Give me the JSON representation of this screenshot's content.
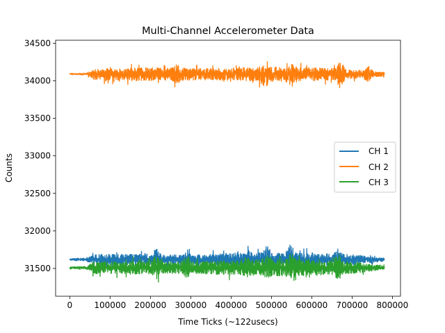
{
  "chart_data": {
    "type": "line",
    "title": "Multi-Channel Accelerometer Data",
    "xlabel": "Time Ticks (~122usecs)",
    "ylabel": "Counts",
    "xlim": [
      -35000,
      820000
    ],
    "ylim": [
      31130,
      34540
    ],
    "xticks": [
      0,
      100000,
      200000,
      300000,
      400000,
      500000,
      600000,
      700000,
      800000
    ],
    "yticks": [
      31500,
      32000,
      32500,
      33000,
      33500,
      34000,
      34500
    ],
    "grid": false,
    "legend_position": "center-right",
    "series": [
      {
        "name": "CH 1",
        "color": "#1f77b4",
        "base": 31620,
        "start_amplitude": 15,
        "peaks": [
          {
            "x": 215000,
            "max": 31900,
            "min": 31440
          },
          {
            "x": 290000,
            "max": 31850,
            "min": 31420
          },
          {
            "x": 440000,
            "max": 31860,
            "min": 31420
          },
          {
            "x": 490000,
            "max": 31930,
            "min": 31400
          },
          {
            "x": 548000,
            "max": 31980,
            "min": 31380
          },
          {
            "x": 665000,
            "max": 31870,
            "min": 31420
          }
        ],
        "envelope": [
          {
            "x": 0,
            "max": 31640,
            "min": 31600
          },
          {
            "x": 40000,
            "max": 31650,
            "min": 31590
          },
          {
            "x": 60000,
            "max": 31730,
            "min": 31500
          },
          {
            "x": 150000,
            "max": 31740,
            "min": 31490
          },
          {
            "x": 300000,
            "max": 31720,
            "min": 31500
          },
          {
            "x": 400000,
            "max": 31760,
            "min": 31480
          },
          {
            "x": 550000,
            "max": 31780,
            "min": 31460
          },
          {
            "x": 700000,
            "max": 31730,
            "min": 31500
          },
          {
            "x": 780000,
            "max": 31650,
            "min": 31580
          }
        ]
      },
      {
        "name": "CH 2",
        "color": "#ff7f0e",
        "base": 34090,
        "start_amplitude": 10,
        "peaks": [
          {
            "x": 265000,
            "max": 34300,
            "min": 33850
          },
          {
            "x": 480000,
            "max": 34280,
            "min": 33830
          },
          {
            "x": 550000,
            "max": 34320,
            "min": 33760
          },
          {
            "x": 670000,
            "max": 34370,
            "min": 33780
          },
          {
            "x": 740000,
            "max": 34270,
            "min": 33900
          }
        ],
        "envelope": [
          {
            "x": 0,
            "max": 34105,
            "min": 34080
          },
          {
            "x": 40000,
            "max": 34110,
            "min": 34070
          },
          {
            "x": 60000,
            "max": 34200,
            "min": 33960
          },
          {
            "x": 200000,
            "max": 34230,
            "min": 33940
          },
          {
            "x": 350000,
            "max": 34210,
            "min": 33960
          },
          {
            "x": 500000,
            "max": 34250,
            "min": 33920
          },
          {
            "x": 650000,
            "max": 34220,
            "min": 33950
          },
          {
            "x": 780000,
            "max": 34130,
            "min": 34040
          }
        ]
      },
      {
        "name": "CH 3",
        "color": "#2ca02c",
        "base": 31510,
        "start_amplitude": 15,
        "peaks": [
          {
            "x": 215000,
            "max": 31800,
            "min": 31260
          },
          {
            "x": 290000,
            "max": 31820,
            "min": 31290
          },
          {
            "x": 440000,
            "max": 31800,
            "min": 31300
          },
          {
            "x": 490000,
            "max": 31860,
            "min": 31270
          },
          {
            "x": 548000,
            "max": 31870,
            "min": 31260
          },
          {
            "x": 665000,
            "max": 31800,
            "min": 31190
          }
        ],
        "envelope": [
          {
            "x": 0,
            "max": 31530,
            "min": 31490
          },
          {
            "x": 40000,
            "max": 31540,
            "min": 31480
          },
          {
            "x": 60000,
            "max": 31640,
            "min": 31380
          },
          {
            "x": 150000,
            "max": 31650,
            "min": 31370
          },
          {
            "x": 300000,
            "max": 31640,
            "min": 31380
          },
          {
            "x": 400000,
            "max": 31680,
            "min": 31340
          },
          {
            "x": 550000,
            "max": 31700,
            "min": 31320
          },
          {
            "x": 700000,
            "max": 31640,
            "min": 31380
          },
          {
            "x": 780000,
            "max": 31550,
            "min": 31470
          }
        ]
      }
    ]
  }
}
